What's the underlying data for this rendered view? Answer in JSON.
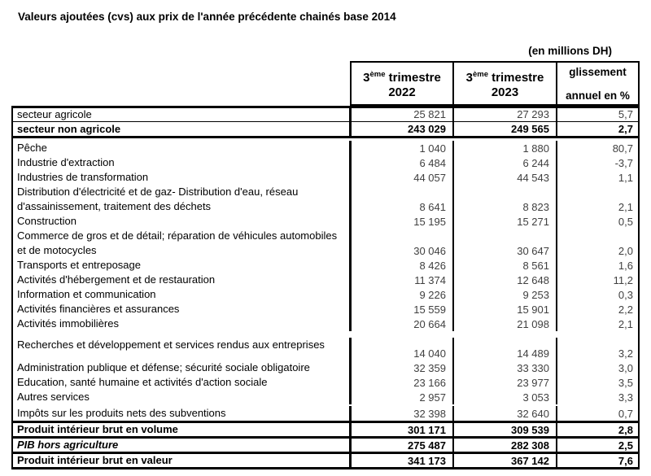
{
  "title": "Valeurs ajoutées (cvs) aux prix de l'année précédente chainés base 2014",
  "unit_note": "(en millions DH)",
  "header": {
    "col2022": {
      "base": "3",
      "sup": "ème",
      "rest": " trimestre",
      "year": "2022"
    },
    "col2023": {
      "base": "3",
      "sup": "ème",
      "rest": " trimestre",
      "year": "2023"
    },
    "col_pct": {
      "line1": "glissement",
      "line2": "annuel en %"
    }
  },
  "summary_rows": [
    {
      "label": "secteur agricole",
      "v2022": "25 821",
      "v2023": "27 293",
      "pct": "5,7"
    },
    {
      "label": "secteur non agricole",
      "v2022": "243 029",
      "v2023": "249 565",
      "pct": "2,7"
    }
  ],
  "detail_rows": [
    {
      "lines": [
        "Pêche"
      ],
      "v2022": "1 040",
      "v2023": "1 880",
      "pct": "80,7"
    },
    {
      "lines": [
        "Industrie d'extraction"
      ],
      "v2022": "6 484",
      "v2023": "6 244",
      "pct": "-3,7"
    },
    {
      "lines": [
        "Industries de transformation"
      ],
      "v2022": "44 057",
      "v2023": "44 543",
      "pct": "1,1"
    },
    {
      "lines": [
        "Distribution d'électricité et de gaz- Distribution d'eau, réseau",
        "d'assainissement, traitement des déchets"
      ],
      "v2022": "8 641",
      "v2023": "8 823",
      "pct": "2,1"
    },
    {
      "lines": [
        "Construction"
      ],
      "v2022": "15 195",
      "v2023": "15 271",
      "pct": "0,5"
    },
    {
      "lines": [
        "Commerce de gros et de détail; réparation de véhicules automobiles",
        "et de motocycles"
      ],
      "v2022": "30 046",
      "v2023": "30 647",
      "pct": "2,0"
    },
    {
      "lines": [
        "Transports et entreposage"
      ],
      "v2022": "8 426",
      "v2023": "8 561",
      "pct": "1,6"
    },
    {
      "lines": [
        "Activités d'hébergement et de restauration"
      ],
      "v2022": "11 374",
      "v2023": "12 648",
      "pct": "11,2"
    },
    {
      "lines": [
        "Information et communication"
      ],
      "v2022": "9 226",
      "v2023": "9 253",
      "pct": "0,3"
    },
    {
      "lines": [
        "Activités financières et assurances"
      ],
      "v2022": "15 559",
      "v2023": "15 901",
      "pct": "2,2"
    },
    {
      "lines": [
        "Activités immobilières"
      ],
      "v2022": "20 664",
      "v2023": "21 098",
      "pct": "2,1"
    },
    {
      "lines": [
        "Recherches et développement et services rendus aux entreprises"
      ],
      "v2022": "14 040",
      "v2023": "14 489",
      "pct": "3,2"
    },
    {
      "lines": [
        "Administration publique et défense; sécurité sociale obligatoire"
      ],
      "v2022": "32 359",
      "v2023": "33 330",
      "pct": "3,0"
    },
    {
      "lines": [
        "Education, santé humaine et activités d'action sociale"
      ],
      "v2022": "23 166",
      "v2023": "23 977",
      "pct": "3,5"
    },
    {
      "lines": [
        "Autres services"
      ],
      "v2022": "2 957",
      "v2023": "3 053",
      "pct": "3,3"
    },
    {
      "lines": [
        "Impôts sur les produits nets des subventions"
      ],
      "v2022": "32 398",
      "v2023": "32 640",
      "pct": "0,7"
    }
  ],
  "total_rows": [
    {
      "label": "Produit intérieur brut en volume",
      "v2022": "301 171",
      "v2023": "309 539",
      "pct": "2,8"
    },
    {
      "label": "PIB hors agriculture",
      "v2022": "275 487",
      "v2023": "282 308",
      "pct": "2,5"
    },
    {
      "label": "Produit intérieur brut en valeur",
      "v2022": "341 173",
      "v2023": "367 142",
      "pct": "7,6"
    }
  ]
}
